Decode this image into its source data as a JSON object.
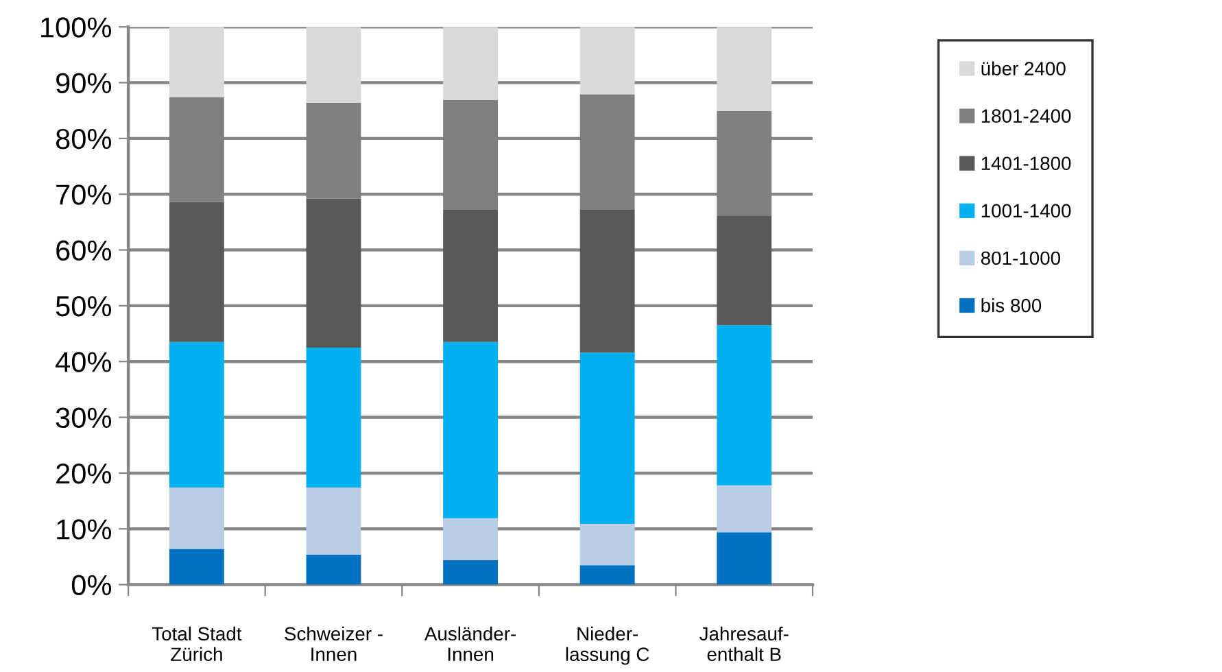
{
  "chart_data": {
    "type": "bar",
    "stacked": true,
    "categories": [
      "Total Stadt\nZürich",
      "Schweizer -\nInnen",
      "Ausländer-\nInnen",
      "Nieder-\nlassung C",
      "Jahresauf-\nenthalt B"
    ],
    "series": [
      {
        "name": "bis 800",
        "color": "#0070c0",
        "values": [
          6.4,
          5.4,
          4.4,
          3.5,
          9.4
        ]
      },
      {
        "name": "801-1000",
        "color": "#b9cde5",
        "values": [
          11.0,
          12.0,
          7.5,
          7.4,
          8.4
        ]
      },
      {
        "name": "1001-1400",
        "color": "#00b0f0",
        "values": [
          26.1,
          25.1,
          31.6,
          30.7,
          28.7
        ]
      },
      {
        "name": "1401-1800",
        "color": "#595959",
        "values": [
          25.1,
          26.7,
          23.7,
          25.6,
          19.7
        ]
      },
      {
        "name": "1801-2400",
        "color": "#7f7f7f",
        "values": [
          18.8,
          17.2,
          19.7,
          20.7,
          18.7
        ]
      },
      {
        "name": "über 2400",
        "color": "#d9d9d9",
        "values": [
          12.6,
          13.6,
          13.1,
          12.1,
          15.1
        ]
      }
    ],
    "ylim": [
      0,
      100
    ],
    "yticks": [
      {
        "value": 0,
        "label": "0%"
      },
      {
        "value": 10,
        "label": "10%"
      },
      {
        "value": 20,
        "label": "20%"
      },
      {
        "value": 30,
        "label": "30%"
      },
      {
        "value": 40,
        "label": "40%"
      },
      {
        "value": 50,
        "label": "50%"
      },
      {
        "value": 60,
        "label": "60%"
      },
      {
        "value": 70,
        "label": "70%"
      },
      {
        "value": 80,
        "label": "80%"
      },
      {
        "value": 90,
        "label": "90%"
      },
      {
        "value": 100,
        "label": "100%"
      }
    ],
    "grid": "y",
    "legend": "right"
  }
}
